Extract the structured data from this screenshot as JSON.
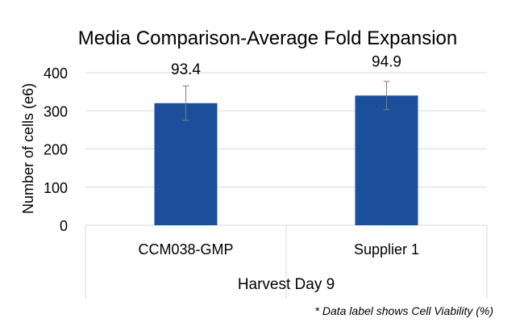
{
  "chart_data": {
    "type": "bar",
    "title": "Media Comparison-Average Fold Expansion",
    "ylabel": "Number of cells (e6)",
    "xlabel": "Harvest Day 9",
    "ylim": [
      0,
      400
    ],
    "yticks": [
      0,
      100,
      200,
      300,
      400
    ],
    "categories": [
      "CCM038-GMP",
      "Supplier 1"
    ],
    "values": [
      320,
      340
    ],
    "error": [
      45,
      37
    ],
    "data_labels": [
      "93.4",
      "94.9"
    ],
    "bar_color": "#1B4F9C",
    "errorbar_color": "#7f7f7f",
    "grid": true,
    "legend": "none",
    "footnote": "* Data label shows Cell Viability (%)"
  }
}
